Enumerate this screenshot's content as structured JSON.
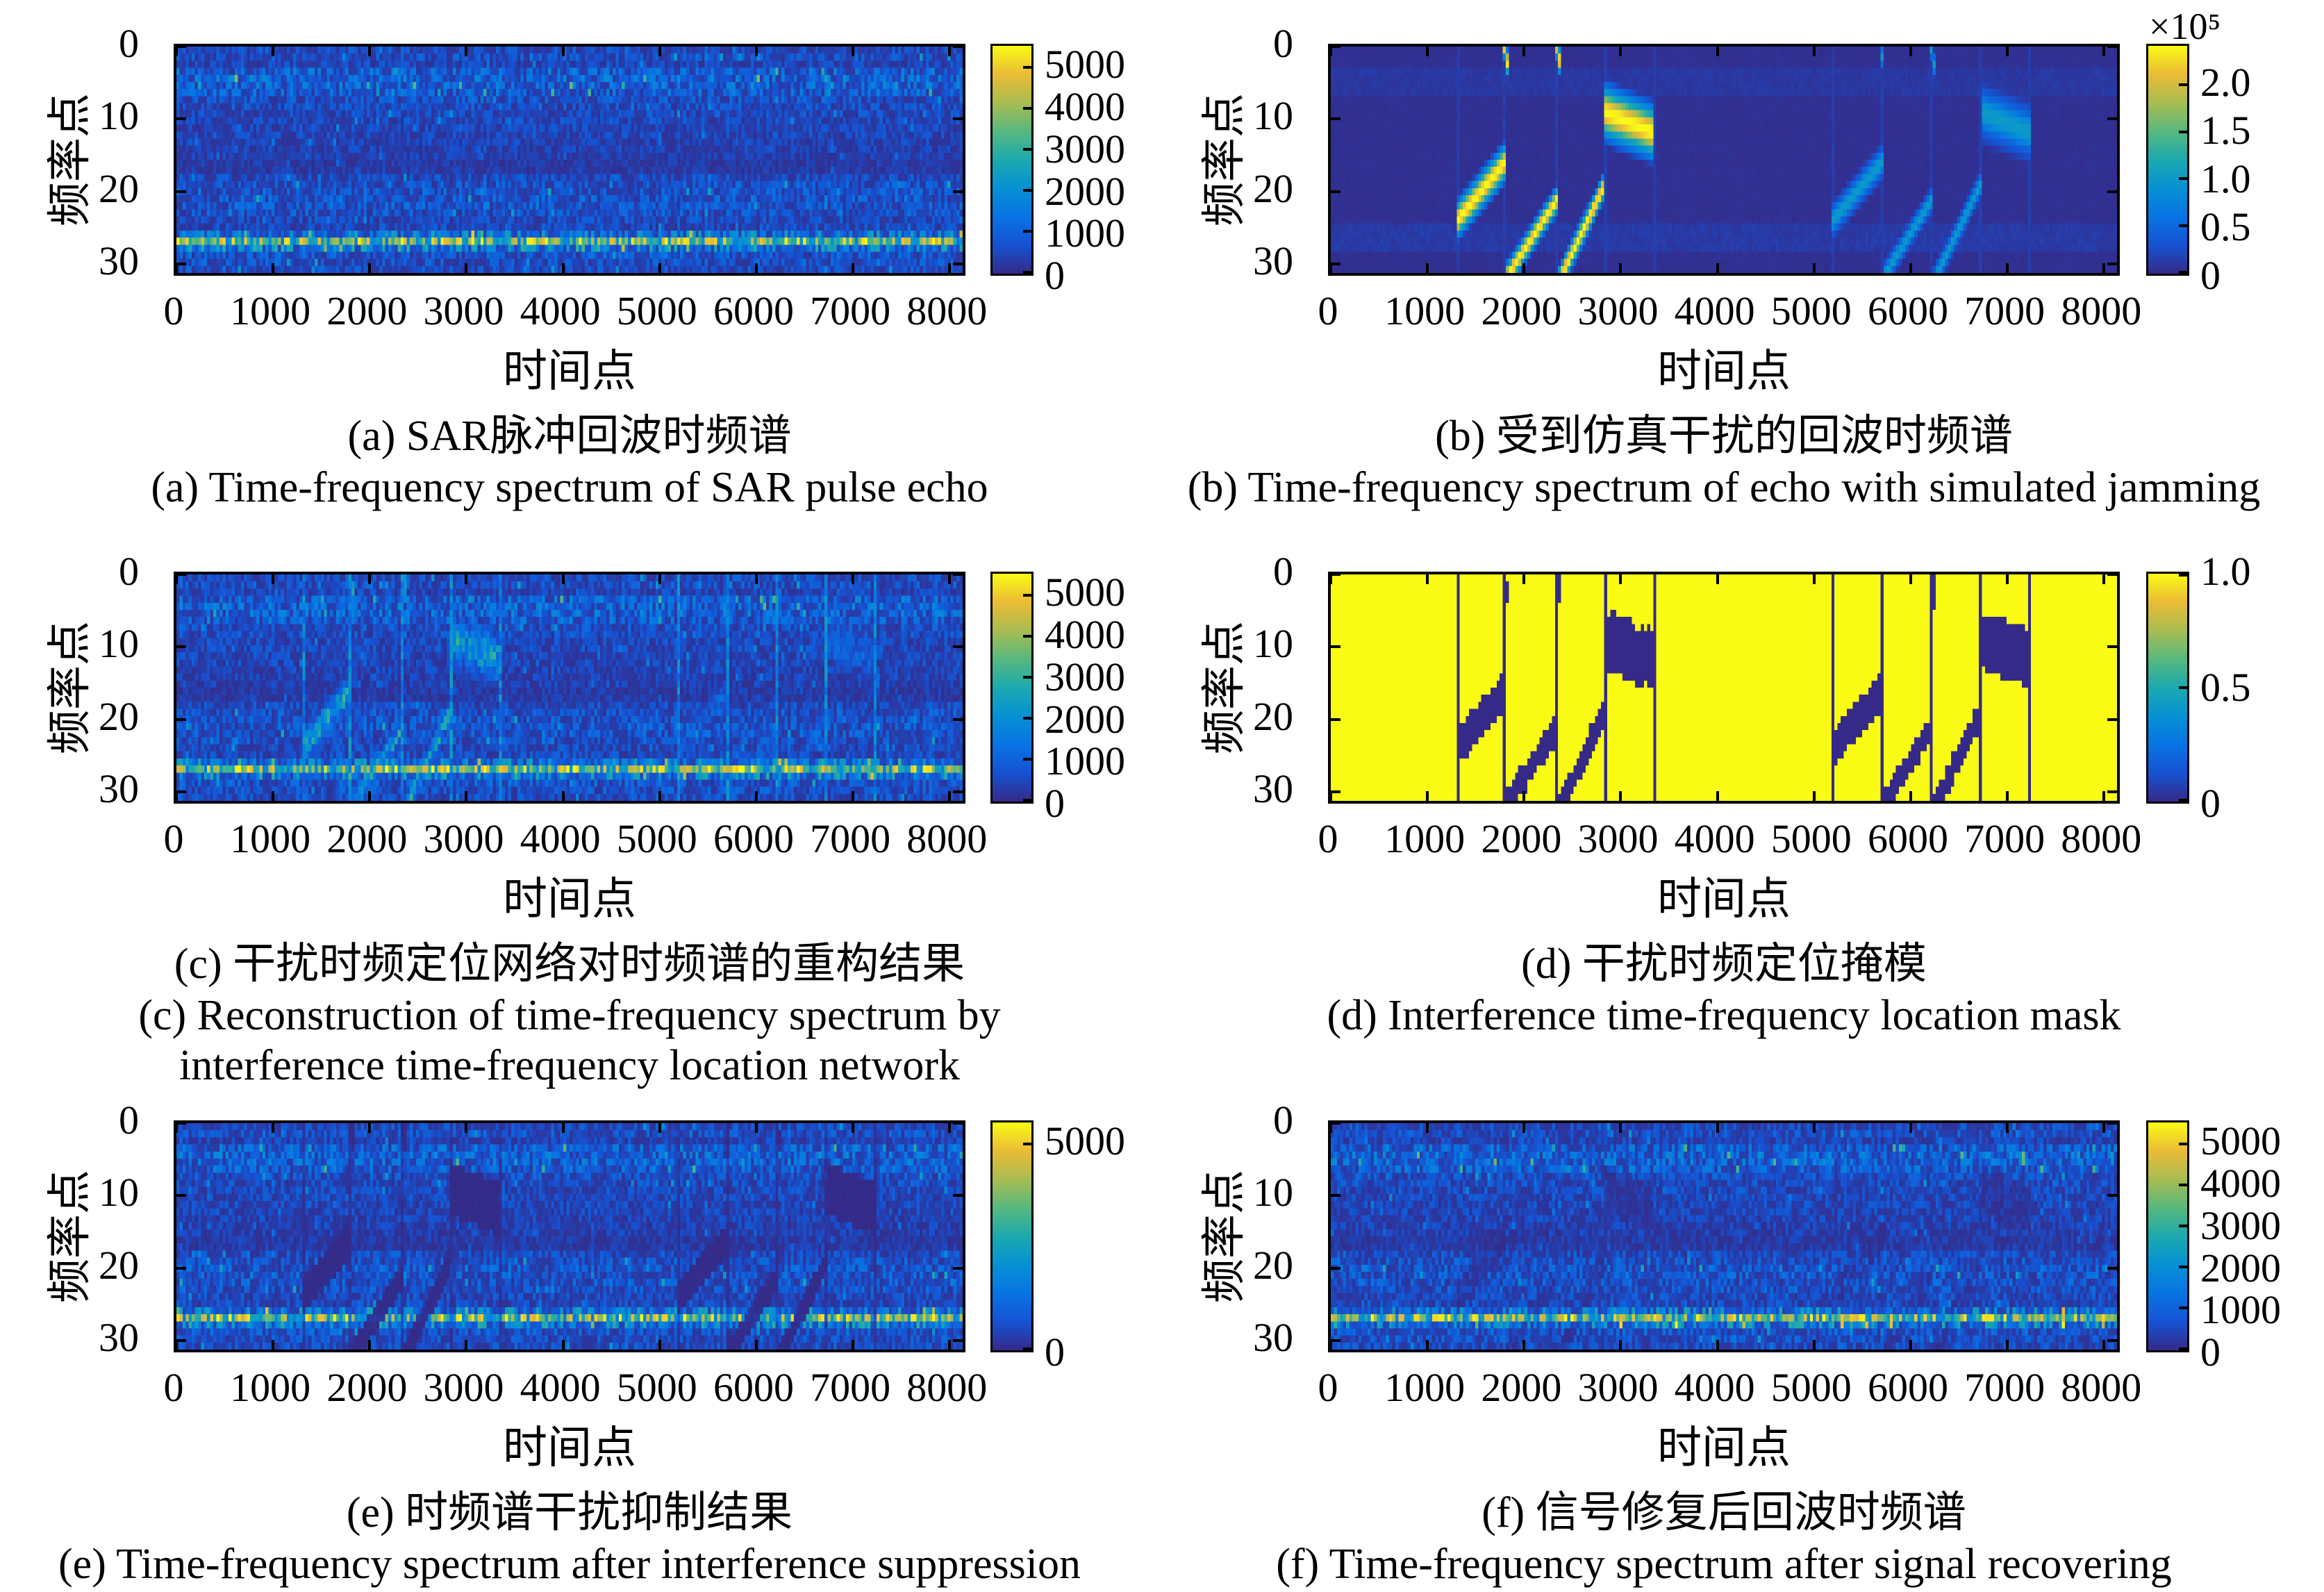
{
  "figure": {
    "background": "#ffffff",
    "text_color": "#000000",
    "colormap_name": "parula",
    "colormap_stops": [
      {
        "t": 0.0,
        "c": "#352a87"
      },
      {
        "t": 0.125,
        "c": "#1652d2"
      },
      {
        "t": 0.25,
        "c": "#0874e3"
      },
      {
        "t": 0.375,
        "c": "#0691d4"
      },
      {
        "t": 0.5,
        "c": "#1ca9ae"
      },
      {
        "t": 0.625,
        "c": "#57b87e"
      },
      {
        "t": 0.75,
        "c": "#a8bc51"
      },
      {
        "t": 0.875,
        "c": "#ebbb36"
      },
      {
        "t": 1.0,
        "c": "#f9fb15"
      }
    ]
  },
  "axis": {
    "xlabel": "时间点",
    "ylabel": "频率点",
    "x_max": 8192,
    "y_max": 32,
    "x_ticks": [
      {
        "v": 0,
        "label": "0"
      },
      {
        "v": 1000,
        "label": "1000"
      },
      {
        "v": 2000,
        "label": "2000"
      },
      {
        "v": 3000,
        "label": "3000"
      },
      {
        "v": 4000,
        "label": "4000"
      },
      {
        "v": 5000,
        "label": "5000"
      },
      {
        "v": 6000,
        "label": "6000"
      },
      {
        "v": 7000,
        "label": "7000"
      },
      {
        "v": 8000,
        "label": "8000"
      }
    ],
    "y_ticks": [
      {
        "v": 0,
        "label": "0"
      },
      {
        "v": 10,
        "label": "10"
      },
      {
        "v": 20,
        "label": "20"
      },
      {
        "v": 30,
        "label": "30"
      }
    ]
  },
  "jam": {
    "pulse_boundaries_t": [
      1315,
      1820,
      2360,
      2860,
      3375,
      5230,
      5745,
      6265,
      6775,
      7290
    ],
    "group_amp": [
      1.0,
      0.42
    ],
    "chirps": [
      {
        "t0": 1315,
        "t1": 1820,
        "f0": 24.6,
        "f1": 16.3,
        "hw": 1.6,
        "g": 0
      },
      {
        "t0": 1820,
        "t1": 2360,
        "f0": 32.8,
        "f1": 21.6,
        "hw": 1.15,
        "g": 0
      },
      {
        "t0": 2360,
        "t1": 2860,
        "f0": 33.6,
        "f1": 19.4,
        "hw": 1.15,
        "g": 0
      },
      {
        "t0": 2860,
        "t1": 3370,
        "f0": 9.3,
        "f1": 12.2,
        "hw": 2.3,
        "g": 0
      },
      {
        "t0": 1800,
        "t1": 1845,
        "f0": -0.6,
        "f1": 2.6,
        "hw": 1.1,
        "g": 0
      },
      {
        "t0": 2345,
        "t1": 2400,
        "f0": -0.6,
        "f1": 3.0,
        "hw": 1.1,
        "g": 0
      },
      {
        "t0": 5230,
        "t1": 5745,
        "f0": 24.6,
        "f1": 16.3,
        "hw": 1.45,
        "g": 1
      },
      {
        "t0": 5745,
        "t1": 6265,
        "f0": 32.8,
        "f1": 21.6,
        "hw": 1.1,
        "g": 1
      },
      {
        "t0": 6265,
        "t1": 6775,
        "f0": 33.6,
        "f1": 19.4,
        "hw": 1.1,
        "g": 1
      },
      {
        "t0": 6775,
        "t1": 7290,
        "f0": 9.3,
        "f1": 12.2,
        "hw": 2.3,
        "g": 1
      },
      {
        "t0": 5715,
        "t1": 5760,
        "f0": -0.6,
        "f1": 2.6,
        "hw": 1.05,
        "g": 1
      },
      {
        "t0": 6240,
        "t1": 6295,
        "f0": -0.6,
        "f1": 3.0,
        "hw": 1.05,
        "g": 1
      }
    ]
  },
  "echo_row_profile": [
    650,
    720,
    520,
    1050,
    1150,
    1100,
    1000,
    720,
    660,
    610,
    600,
    560,
    540,
    500,
    460,
    400,
    330,
    330,
    640,
    760,
    820,
    860,
    820,
    760,
    620,
    620,
    1500,
    2900,
    1700,
    820,
    720,
    660
  ],
  "chart_data": [
    {
      "id": "a",
      "type": "heatmap",
      "base": "echo",
      "seed": 11,
      "notes": "SAR pulse echo spectrogram: blue noise background, bright speckled horizontal band at frequency bin ~27, lighter noise bands at bins 3-6 and 20-23, dark band at bins 16-17.",
      "caption_cn": "(a) SAR脉冲回波时频谱",
      "caption_en": "(a) Time-frequency spectrum of SAR pulse echo",
      "colorbar": {
        "vmax": 5500,
        "ticks": [
          {
            "v": 5000,
            "label": "5000"
          },
          {
            "v": 4000,
            "label": "4000"
          },
          {
            "v": 3000,
            "label": "3000"
          },
          {
            "v": 2000,
            "label": "2000"
          },
          {
            "v": 1000,
            "label": "1000"
          },
          {
            "v": 0,
            "label": "0"
          }
        ]
      }
    },
    {
      "id": "b",
      "type": "heatmap",
      "base": "jam",
      "seed": 22,
      "notes": "Echo with simulated jamming: dark blue background, bright chirp interference segments (yellow group around t=1300-3400, cyan group around t=5200-7300), thin vertical pulse boundaries.",
      "caption_cn": "(b) 受到仿真干扰的回波时频谱",
      "caption_en": "(b) Time-frequency spectrum of echo with simulated jamming",
      "colorbar": {
        "vmax": 2.4,
        "exp": "×10⁵",
        "ticks": [
          {
            "v": 2.0,
            "label": "2.0"
          },
          {
            "v": 1.5,
            "label": "1.5"
          },
          {
            "v": 1.0,
            "label": "1.0"
          },
          {
            "v": 0.5,
            "label": "0.5"
          },
          {
            "v": 0,
            "label": "0"
          }
        ]
      }
    },
    {
      "id": "c",
      "type": "heatmap",
      "base": "recon",
      "seed": 33,
      "notes": "Network reconstruction: echo-like spectrogram with teal residual chirp traces and vertical streaks at pulse boundaries.",
      "caption_cn": "(c) 干扰时频定位网络对时频谱的重构结果",
      "caption_en": "(c) Reconstruction of time-frequency spectrum by",
      "caption_en2": "interference time-frequency location network",
      "colorbar": {
        "vmax": 5500,
        "ticks": [
          {
            "v": 5000,
            "label": "5000"
          },
          {
            "v": 4000,
            "label": "4000"
          },
          {
            "v": 3000,
            "label": "3000"
          },
          {
            "v": 2000,
            "label": "2000"
          },
          {
            "v": 1000,
            "label": "1000"
          },
          {
            "v": 0,
            "label": "0"
          }
        ]
      }
    },
    {
      "id": "d",
      "type": "heatmap",
      "base": "mask",
      "seed": 44,
      "notes": "Binary location mask: value 1 (yellow) everywhere except interference regions and pulse boundary lines which are 0 (blue).",
      "caption_cn": "(d) 干扰时频定位掩模",
      "caption_en": "(d) Interference time-frequency location mask",
      "colorbar": {
        "vmax": 1.0,
        "ticks": [
          {
            "v": 1.0,
            "label": "1.0"
          },
          {
            "v": 0.5,
            "label": "0.5"
          },
          {
            "v": 0,
            "label": "0"
          }
        ]
      }
    },
    {
      "id": "e",
      "type": "heatmap",
      "base": "suppressed",
      "seed": 55,
      "notes": "Spectrum after interference suppression: echo spectrogram with near-zero dark patches where the mask removed interference.",
      "caption_cn": "(e) 时频谱干扰抑制结果",
      "caption_en": "(e) Time-frequency spectrum after interference suppression",
      "colorbar": {
        "vmax": 5500,
        "ticks": [
          {
            "v": 5000,
            "label": "5000"
          },
          {
            "v": 0,
            "label": "0"
          }
        ]
      }
    },
    {
      "id": "f",
      "type": "heatmap",
      "base": "recovered",
      "seed": 66,
      "notes": "Spectrum after signal recovering: echo spectrogram restored, only faint darker traces remain at former interference locations.",
      "caption_cn": "(f) 信号修复后回波时频谱",
      "caption_en": "(f) Time-frequency spectrum after signal recovering",
      "colorbar": {
        "vmax": 5500,
        "ticks": [
          {
            "v": 5000,
            "label": "5000"
          },
          {
            "v": 4000,
            "label": "4000"
          },
          {
            "v": 3000,
            "label": "3000"
          },
          {
            "v": 2000,
            "label": "2000"
          },
          {
            "v": 1000,
            "label": "1000"
          },
          {
            "v": 0,
            "label": "0"
          }
        ]
      }
    }
  ]
}
